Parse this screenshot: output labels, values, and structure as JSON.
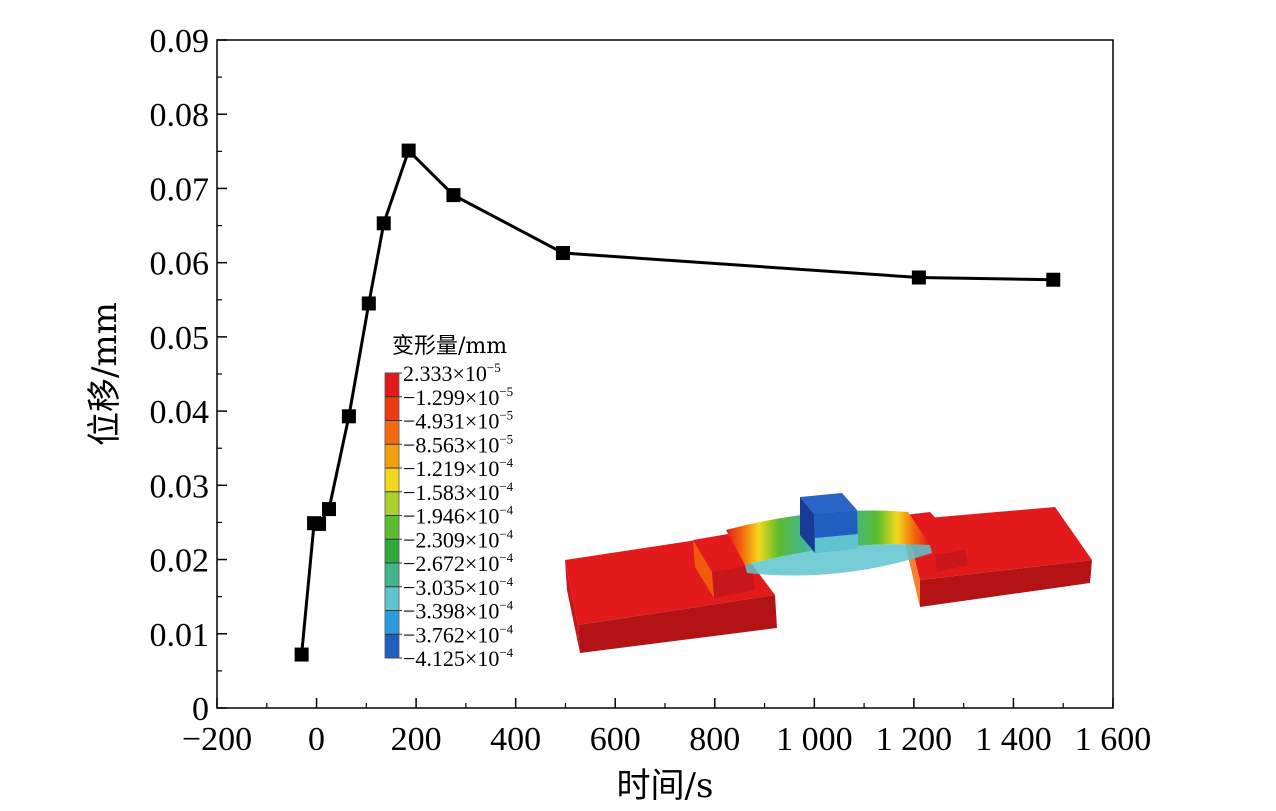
{
  "chart_data": {
    "type": "line",
    "xlabel": "时间/s",
    "ylabel": "位移/mm",
    "xlim": [
      -200,
      1600
    ],
    "ylim": [
      0,
      0.09
    ],
    "x_ticks": [
      -200,
      0,
      200,
      400,
      600,
      800,
      1000,
      1200,
      1400,
      1600
    ],
    "x_tick_labels": [
      "−200",
      "0",
      "200",
      "400",
      "600",
      "800",
      "1 000",
      "1 200",
      "1 400",
      "1 600"
    ],
    "y_ticks": [
      0,
      0.01,
      0.02,
      0.03,
      0.04,
      0.05,
      0.06,
      0.07,
      0.08,
      0.09
    ],
    "y_tick_labels": [
      "0",
      "0.01",
      "0.02",
      "0.03",
      "0.04",
      "0.05",
      "0.06",
      "0.07",
      "0.08",
      "0.09"
    ],
    "grid": false,
    "series": [
      {
        "marker": "square",
        "color": "#000000",
        "x": [
          -30,
          -5,
          5,
          25,
          65,
          105,
          135,
          185,
          275,
          495,
          1210,
          1480
        ],
        "y": [
          0.0072,
          0.0249,
          0.0248,
          0.0268,
          0.0393,
          0.0545,
          0.0653,
          0.0751,
          0.0691,
          0.0613,
          0.058,
          0.0577
        ]
      }
    ]
  },
  "inset": {
    "colorbar_title": "变形量/mm",
    "colorbar_entries": [
      {
        "mantissa": "2.333",
        "exp": "−5",
        "color": "#e31a1c"
      },
      {
        "mantissa": "−1.299",
        "exp": "−5",
        "color": "#ee3a10"
      },
      {
        "mantissa": "−4.931",
        "exp": "−5",
        "color": "#f26a0c"
      },
      {
        "mantissa": "−8.563",
        "exp": "−5",
        "color": "#f5a10e"
      },
      {
        "mantissa": "−1.219",
        "exp": "−4",
        "color": "#f2d81c"
      },
      {
        "mantissa": "−1.583",
        "exp": "−4",
        "color": "#a9d12a"
      },
      {
        "mantissa": "−1.946",
        "exp": "−4",
        "color": "#5bbd2f"
      },
      {
        "mantissa": "−2.309",
        "exp": "−4",
        "color": "#2fa83c"
      },
      {
        "mantissa": "−2.672",
        "exp": "−4",
        "color": "#43b58c"
      },
      {
        "mantissa": "−3.035",
        "exp": "−4",
        "color": "#5fc4cf"
      },
      {
        "mantissa": "−3.398",
        "exp": "−4",
        "color": "#2b9be0"
      },
      {
        "mantissa": "−3.762",
        "exp": "−4",
        "color": "#1f5fbf"
      },
      {
        "mantissa": "−4.125",
        "exp": "−4",
        "color": "#1a3a98"
      }
    ],
    "multiply_sign": "×10"
  }
}
